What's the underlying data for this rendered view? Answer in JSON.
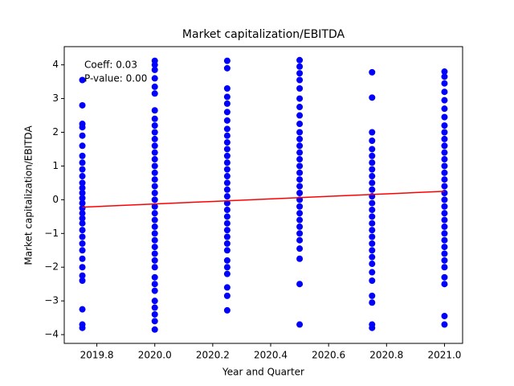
{
  "chart_data": {
    "type": "scatter",
    "title": "Market capitalization/EBITDA",
    "x_label": "Year and Quarter",
    "y_label": "Market capitalization/EBITDA",
    "annotations": [
      "Coeff: 0.03",
      "P-value: 0.00"
    ],
    "color": "blue",
    "xlim": [
      2019.6875,
      2021.0625
    ],
    "xticks": [
      2019.8,
      {
        "value": 2020,
        "label": "2020.0"
      },
      2020.2,
      2020.4,
      2020.6,
      2020.8,
      {
        "value": 2021,
        "label": "2021.0"
      }
    ],
    "ylim": [
      -4.26,
      4.54
    ],
    "yticks": [
      {
        "value": -4,
        "label": "−4"
      },
      {
        "value": -3,
        "label": "−3"
      },
      {
        "value": -2,
        "label": "−2"
      },
      {
        "value": -1,
        "label": "−1"
      },
      0,
      1,
      2,
      3,
      4
    ],
    "groups": [
      {
        "x": 2019.75,
        "values": [
          3.55,
          2.8,
          2.25,
          2.15,
          1.9,
          1.6,
          1.3,
          1.1,
          0.9,
          0.7,
          0.5,
          0.35,
          0.2,
          0.05,
          -0.1,
          -0.25,
          -0.4,
          -0.55,
          -0.7,
          -0.9,
          -1.1,
          -1.3,
          -1.5,
          -1.75,
          -2.0,
          -2.25,
          -2.4,
          -3.25,
          -3.7,
          -3.8
        ]
      },
      {
        "x": 2020,
        "values": [
          4.12,
          4.0,
          3.85,
          3.6,
          3.35,
          3.15,
          2.65,
          2.4,
          2.2,
          2.0,
          1.8,
          1.6,
          1.4,
          1.2,
          1.0,
          0.8,
          0.6,
          0.4,
          0.2,
          0.0,
          -0.2,
          -0.4,
          -0.6,
          -0.8,
          -1.0,
          -1.2,
          -1.4,
          -1.6,
          -1.8,
          -2.0,
          -2.3,
          -2.5,
          -2.7,
          -3.0,
          -3.2,
          -3.4,
          -3.6,
          -3.85
        ]
      },
      {
        "x": 2020.25,
        "values": [
          4.12,
          3.9,
          3.3,
          3.05,
          2.85,
          2.6,
          2.35,
          2.1,
          1.9,
          1.7,
          1.5,
          1.3,
          1.1,
          0.9,
          0.7,
          0.5,
          0.3,
          0.1,
          -0.1,
          -0.3,
          -0.5,
          -0.7,
          -0.9,
          -1.1,
          -1.3,
          -1.5,
          -1.8,
          -2.0,
          -2.2,
          -2.6,
          -2.85,
          -3.28
        ]
      },
      {
        "x": 2020.5,
        "values": [
          4.14,
          3.95,
          3.75,
          3.55,
          3.3,
          3.0,
          2.75,
          2.5,
          2.25,
          2.0,
          1.8,
          1.6,
          1.4,
          1.2,
          1.0,
          0.8,
          0.6,
          0.4,
          0.2,
          0.0,
          -0.2,
          -0.4,
          -0.6,
          -0.8,
          -1.0,
          -1.2,
          -1.45,
          -1.75,
          -2.5,
          -3.7
        ]
      },
      {
        "x": 2020.75,
        "values": [
          3.78,
          3.03,
          2.0,
          1.75,
          1.5,
          1.3,
          1.1,
          0.9,
          0.7,
          0.5,
          0.3,
          0.1,
          -0.1,
          -0.3,
          -0.5,
          -0.7,
          -0.9,
          -1.1,
          -1.3,
          -1.5,
          -1.7,
          -1.9,
          -2.15,
          -2.4,
          -2.85,
          -3.05,
          -3.7,
          -3.8
        ]
      },
      {
        "x": 2021,
        "values": [
          3.8,
          3.65,
          3.45,
          3.2,
          2.95,
          2.7,
          2.45,
          2.2,
          2.0,
          1.8,
          1.6,
          1.4,
          1.2,
          1.0,
          0.8,
          0.6,
          0.4,
          0.2,
          0.0,
          -0.2,
          -0.4,
          -0.6,
          -0.8,
          -1.0,
          -1.2,
          -1.4,
          -1.6,
          -1.8,
          -2.0,
          -2.3,
          -2.5,
          -3.45,
          -3.7
        ]
      }
    ],
    "fit_line": {
      "x": [
        2019.75,
        2021
      ],
      "y": [
        -0.22,
        0.25
      ],
      "color": "red"
    }
  }
}
